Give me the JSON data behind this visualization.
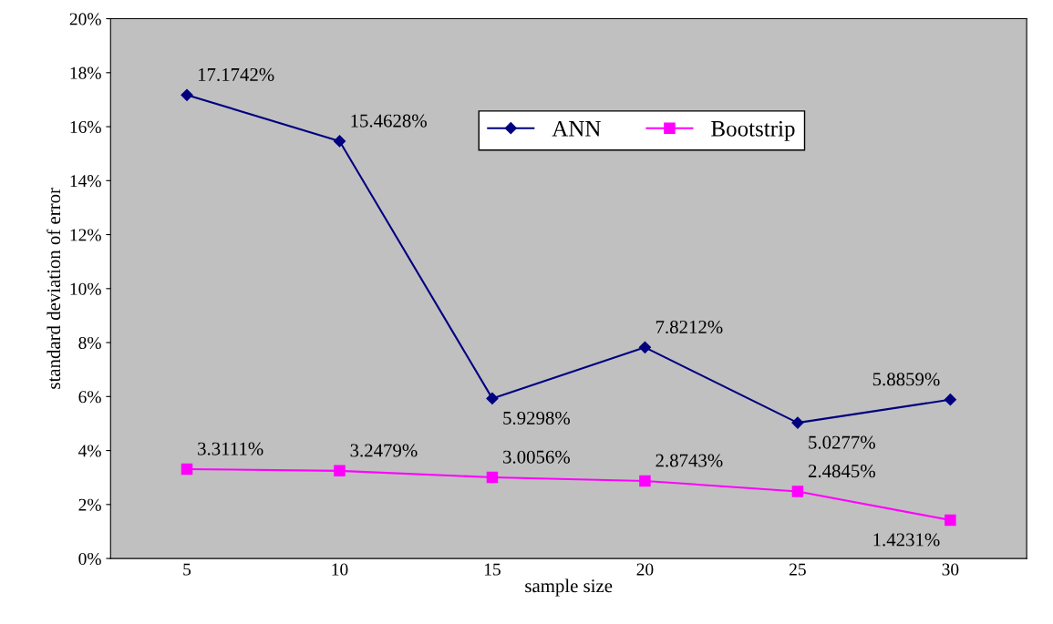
{
  "chart_data": {
    "type": "line",
    "xlabel": "sample size",
    "ylabel": "standard deviation of error",
    "categories": [
      "5",
      "10",
      "15",
      "20",
      "25",
      "30"
    ],
    "series": [
      {
        "name": "ANN",
        "color": "#000080",
        "marker": "diamond",
        "values": [
          17.1742,
          15.4628,
          5.9298,
          7.8212,
          5.0277,
          5.8859
        ],
        "value_labels": [
          "17.1742%",
          "15.4628%",
          "5.9298%",
          "7.8212%",
          "5.0277%",
          "5.8859%"
        ]
      },
      {
        "name": "Bootstrip",
        "color": "#ff00ff",
        "marker": "square",
        "values": [
          3.3111,
          3.2479,
          3.0056,
          2.8743,
          2.4845,
          1.4231
        ],
        "value_labels": [
          "3.3111%",
          "3.2479%",
          "3.0056%",
          "2.8743%",
          "2.4845%",
          "1.4231%"
        ]
      }
    ],
    "ylim": [
      0,
      20
    ],
    "yticks": [
      {
        "value": 0,
        "label": "0%"
      },
      {
        "value": 2,
        "label": "2%"
      },
      {
        "value": 4,
        "label": "4%"
      },
      {
        "value": 6,
        "label": "6%"
      },
      {
        "value": 8,
        "label": "8%"
      },
      {
        "value": 10,
        "label": "10%"
      },
      {
        "value": 12,
        "label": "12%"
      },
      {
        "value": 14,
        "label": "14%"
      },
      {
        "value": 16,
        "label": "16%"
      },
      {
        "value": 18,
        "label": "18%"
      },
      {
        "value": 20,
        "label": "20%"
      }
    ],
    "grid": false,
    "legend": "top right",
    "line_style": "solid"
  }
}
